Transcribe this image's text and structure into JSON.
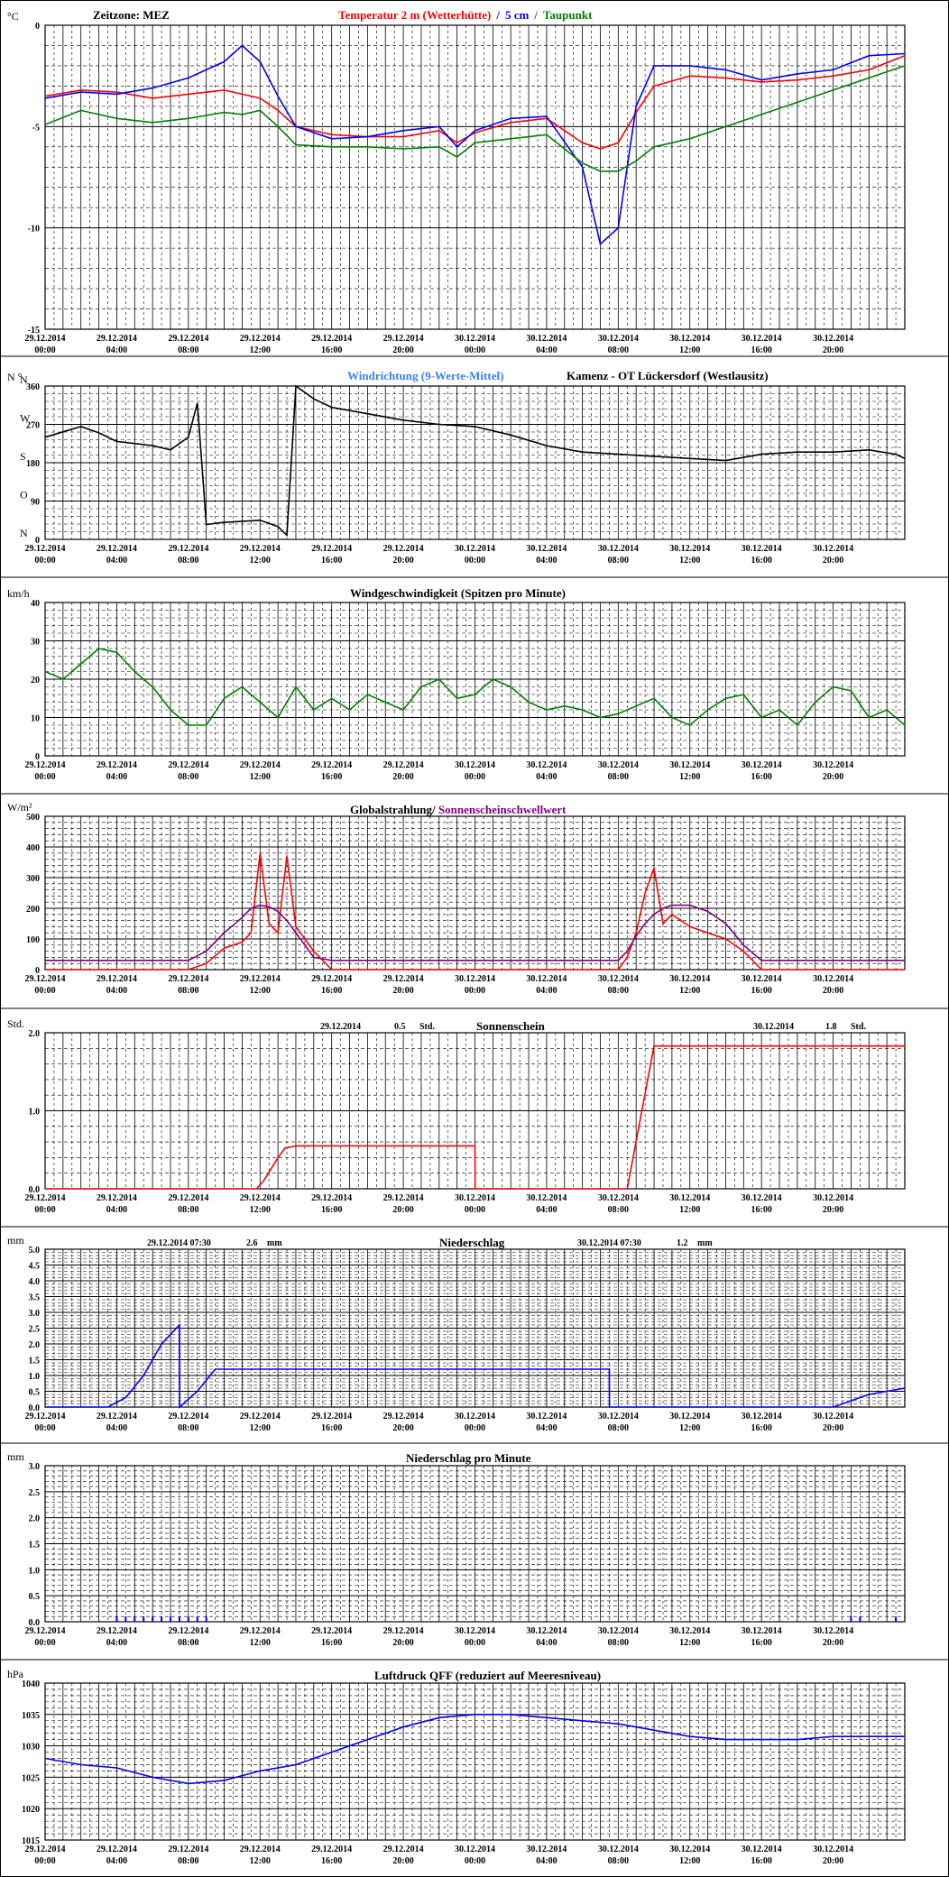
{
  "timezone_label": "Zeitzone: MEZ",
  "colors": {
    "red": "#ff0000",
    "blue": "#0000ff",
    "green": "#008000",
    "lightblue": "#3a7dff",
    "purple": "#800080",
    "darkblue": "#00008b",
    "black": "#000000"
  },
  "x_axis": {
    "ticks": [
      {
        "date": "29.12.2014",
        "time": "00:00"
      },
      {
        "date": "29.12.2014",
        "time": "04:00"
      },
      {
        "date": "29.12.2014",
        "time": "08:00"
      },
      {
        "date": "29.12.2014",
        "time": "12:00"
      },
      {
        "date": "29.12.2014",
        "time": "16:00"
      },
      {
        "date": "29.12.2014",
        "time": "20:00"
      },
      {
        "date": "30.12.2014",
        "time": "00:00"
      },
      {
        "date": "30.12.2014",
        "time": "04:00"
      },
      {
        "date": "30.12.2014",
        "time": "08:00"
      },
      {
        "date": "30.12.2014",
        "time": "12:00"
      },
      {
        "date": "30.12.2014",
        "time": "16:00"
      },
      {
        "date": "30.12.2014",
        "time": "20:00"
      }
    ],
    "range_hours": [
      0,
      48
    ]
  },
  "chart_data": [
    {
      "type": "line",
      "id": "temperature",
      "unit": "°C",
      "title_parts": [
        "Temperatur 2 m (Wetterhütte)",
        "/",
        "5 cm",
        "/",
        "Taupunkt"
      ],
      "ylim": [
        -15,
        0
      ],
      "yticks": [
        0,
        -5,
        -10,
        -15
      ],
      "x": [
        0,
        2,
        4,
        6,
        8,
        10,
        11,
        12,
        13,
        14,
        16,
        18,
        20,
        22,
        23,
        24,
        26,
        28,
        30,
        31,
        32,
        33,
        34,
        36,
        38,
        40,
        42,
        44,
        46,
        48
      ],
      "series": [
        {
          "name": "Temperatur 2 m (Wetterhütte)",
          "color": "#ff0000",
          "values": [
            -3.5,
            -3.2,
            -3.3,
            -3.6,
            -3.4,
            -3.2,
            -3.4,
            -3.6,
            -4.2,
            -5.0,
            -5.4,
            -5.5,
            -5.5,
            -5.2,
            -5.8,
            -5.3,
            -4.8,
            -4.6,
            -5.8,
            -6.1,
            -5.8,
            -4.3,
            -3.0,
            -2.5,
            -2.6,
            -2.8,
            -2.7,
            -2.5,
            -2.2,
            -1.5
          ]
        },
        {
          "name": "5 cm",
          "color": "#0000ff",
          "values": [
            -3.6,
            -3.3,
            -3.4,
            -3.1,
            -2.6,
            -1.8,
            -1.0,
            -1.8,
            -3.5,
            -5.0,
            -5.6,
            -5.5,
            -5.2,
            -5.0,
            -6.0,
            -5.2,
            -4.6,
            -4.5,
            -7.0,
            -10.8,
            -10.0,
            -4.0,
            -2.0,
            -2.0,
            -2.2,
            -2.7,
            -2.4,
            -2.2,
            -1.5,
            -1.4
          ]
        },
        {
          "name": "Taupunkt",
          "color": "#008000",
          "values": [
            -4.9,
            -4.2,
            -4.6,
            -4.8,
            -4.6,
            -4.3,
            -4.4,
            -4.2,
            -5.0,
            -5.9,
            -6.0,
            -6.0,
            -6.1,
            -6.0,
            -6.5,
            -5.8,
            -5.6,
            -5.4,
            -6.8,
            -7.2,
            -7.2,
            -6.7,
            -6.0,
            -5.6,
            -5.0,
            -4.4,
            -3.8,
            -3.2,
            -2.6,
            -2.0
          ]
        }
      ]
    },
    {
      "type": "line",
      "id": "wind_direction",
      "unit": "N °",
      "title": "Windrichtung (9-Werte-Mittel)",
      "station": "Kamenz - OT Lückersdorf (Westlausitz)",
      "ylim": [
        0,
        360
      ],
      "yticks": [
        0,
        90,
        180,
        270,
        360
      ],
      "compass_labels": [
        {
          "label": "N",
          "value": 360
        },
        {
          "label": "W",
          "value": 270
        },
        {
          "label": "S",
          "value": 180
        },
        {
          "label": "O",
          "value": 90
        },
        {
          "label": "N",
          "value": 0
        }
      ],
      "x": [
        0,
        2,
        3,
        4,
        6,
        7,
        8,
        8.5,
        9,
        10,
        12,
        13,
        13.5,
        14,
        15,
        16,
        18,
        20,
        22,
        24,
        26,
        28,
        30,
        32,
        34,
        36,
        38,
        40,
        42,
        44,
        46,
        47.5,
        48
      ],
      "series": [
        {
          "name": "Windrichtung (9-Werte-Mittel)",
          "color": "#000000",
          "values": [
            240,
            265,
            250,
            230,
            220,
            210,
            240,
            320,
            35,
            40,
            45,
            30,
            10,
            360,
            330,
            310,
            295,
            280,
            270,
            265,
            245,
            220,
            205,
            200,
            195,
            190,
            185,
            200,
            205,
            205,
            210,
            200,
            190
          ]
        }
      ]
    },
    {
      "type": "line",
      "id": "wind_speed",
      "unit": "km/h",
      "title": "Windgeschwindigkeit (Spitzen pro Minute)",
      "ylim": [
        0,
        40
      ],
      "yticks": [
        0,
        10,
        20,
        30,
        40
      ],
      "x": [
        0,
        1,
        2,
        3,
        4,
        5,
        6,
        7,
        8,
        9,
        10,
        11,
        12,
        13,
        14,
        15,
        16,
        17,
        18,
        19,
        20,
        21,
        22,
        23,
        24,
        25,
        26,
        27,
        28,
        29,
        30,
        31,
        32,
        33,
        34,
        35,
        36,
        37,
        38,
        39,
        40,
        41,
        42,
        43,
        44,
        45,
        46,
        47,
        48
      ],
      "series": [
        {
          "name": "Windgeschwindigkeit",
          "color": "#008000",
          "values": [
            22,
            20,
            24,
            28,
            27,
            22,
            18,
            12,
            8,
            8,
            15,
            18,
            14,
            10,
            18,
            12,
            15,
            12,
            16,
            14,
            12,
            18,
            20,
            15,
            16,
            20,
            18,
            14,
            12,
            13,
            12,
            10,
            11,
            13,
            15,
            10,
            8,
            12,
            15,
            16,
            10,
            12,
            8,
            14,
            18,
            17,
            10,
            12,
            8
          ]
        }
      ]
    },
    {
      "type": "line",
      "id": "global_radiation",
      "unit": "W/m²",
      "title_parts": [
        "Globalstrahlung",
        "/ ",
        "Sonnenscheinschwellwert"
      ],
      "ylim": [
        0,
        500
      ],
      "yticks": [
        0,
        100,
        200,
        300,
        400,
        500
      ],
      "x": [
        0,
        8,
        9,
        10,
        11,
        11.5,
        12,
        12.5,
        13,
        13.5,
        14,
        15,
        16,
        32,
        32.5,
        33,
        33.5,
        34,
        34.5,
        35,
        36,
        37,
        38,
        39,
        40,
        48
      ],
      "series": [
        {
          "name": "Globalstrahlung",
          "color": "#ff0000",
          "values": [
            0,
            0,
            20,
            70,
            90,
            120,
            380,
            150,
            120,
            370,
            140,
            60,
            0,
            0,
            40,
            120,
            250,
            330,
            150,
            180,
            140,
            120,
            100,
            60,
            0,
            0
          ]
        },
        {
          "name": "Sonnenscheinschwellwert",
          "color": "#800080",
          "values": [
            30,
            30,
            60,
            120,
            170,
            200,
            210,
            205,
            190,
            160,
            120,
            40,
            30,
            30,
            60,
            110,
            150,
            180,
            200,
            210,
            210,
            190,
            150,
            80,
            30,
            30
          ]
        }
      ]
    },
    {
      "type": "line",
      "id": "sunshine",
      "unit": "Std.",
      "title": "Sonnenschein",
      "annotations": [
        {
          "date": "29.12.2014",
          "value": "0.5",
          "unit": "Std."
        },
        {
          "date": "30.12.2014",
          "value": "1.8",
          "unit": "Std."
        }
      ],
      "ylim": [
        0,
        2.0
      ],
      "yticks": [
        0.0,
        1.0,
        2.0
      ],
      "ytick_labels": [
        "0.0",
        "1.0",
        "2.0"
      ],
      "x": [
        0,
        11.8,
        12.2,
        12.6,
        13,
        13.4,
        14,
        24,
        24.01,
        32.5,
        34,
        48
      ],
      "series": [
        {
          "name": "Sonnenschein",
          "color": "#ff0000",
          "values": [
            0,
            0,
            0.1,
            0.25,
            0.4,
            0.52,
            0.55,
            0.55,
            0,
            0,
            1.83,
            1.83
          ]
        }
      ]
    },
    {
      "type": "line",
      "id": "precipitation",
      "unit": "mm",
      "title": "Niederschlag",
      "annotations": [
        {
          "date": "29.12.2014 07:30",
          "value": "2.6",
          "unit": "mm"
        },
        {
          "date": "30.12.2014 07:30",
          "value": "1.2",
          "unit": "mm"
        }
      ],
      "ylim": [
        0,
        5.0
      ],
      "yticks": [
        0.0,
        0.5,
        1.0,
        1.5,
        2.0,
        2.5,
        3.0,
        3.5,
        4.0,
        4.5,
        5.0
      ],
      "ytick_labels": [
        "0.0",
        "0.5",
        "1.0",
        "1.5",
        "2.0",
        "2.5",
        "3.0",
        "3.5",
        "4.0",
        "4.5",
        "5.0"
      ],
      "x": [
        0,
        3.5,
        4.5,
        5.5,
        6.5,
        7.5,
        7.51,
        8.5,
        9.5,
        10,
        31.5,
        31.51,
        44,
        45,
        46,
        47,
        48
      ],
      "series": [
        {
          "name": "Niederschlag",
          "color": "#0000ff",
          "values": [
            0,
            0,
            0.3,
            1.0,
            2.0,
            2.6,
            0,
            0.5,
            1.2,
            1.2,
            1.2,
            0,
            0,
            0.2,
            0.4,
            0.5,
            0.6
          ]
        }
      ]
    },
    {
      "type": "bar",
      "id": "precip_per_minute",
      "unit": "mm",
      "title": "Niederschlag pro Minute",
      "ylim": [
        0,
        3.0
      ],
      "yticks": [
        0.0,
        0.5,
        1.0,
        1.5,
        2.0,
        2.5,
        3.0
      ],
      "ytick_labels": [
        "0.0",
        "0.5",
        "1.0",
        "1.5",
        "2.0",
        "2.5",
        "3.0"
      ],
      "x": [
        4,
        4.5,
        5,
        5.5,
        6,
        6.5,
        7,
        7.5,
        8,
        8.5,
        9,
        45,
        45.5,
        47.5
      ],
      "series": [
        {
          "name": "Niederschlag pro Minute",
          "color": "#0000ff",
          "values": [
            0.1,
            0.1,
            0.1,
            0.1,
            0.1,
            0.1,
            0.1,
            0.1,
            0.1,
            0.1,
            0.1,
            0.1,
            0.1,
            0.1
          ]
        }
      ]
    },
    {
      "type": "line",
      "id": "pressure",
      "unit": "hPa",
      "title": "Luftdruck QFF (reduziert auf Meeresniveau)",
      "ylim": [
        1015,
        1040
      ],
      "yticks": [
        1015,
        1020,
        1025,
        1030,
        1035,
        1040
      ],
      "x": [
        0,
        2,
        4,
        6,
        8,
        10,
        12,
        14,
        16,
        18,
        20,
        22,
        24,
        26,
        28,
        30,
        32,
        34,
        36,
        38,
        40,
        42,
        44,
        46,
        48
      ],
      "series": [
        {
          "name": "Luftdruck QFF",
          "color": "#0000ff",
          "values": [
            1028,
            1027,
            1026.5,
            1025,
            1024,
            1024.5,
            1026,
            1027,
            1029,
            1031,
            1033,
            1034.5,
            1035,
            1035,
            1034.5,
            1034,
            1033.5,
            1032.5,
            1031.5,
            1031,
            1031,
            1031,
            1031.5,
            1031.5,
            1031.5
          ]
        }
      ]
    }
  ]
}
